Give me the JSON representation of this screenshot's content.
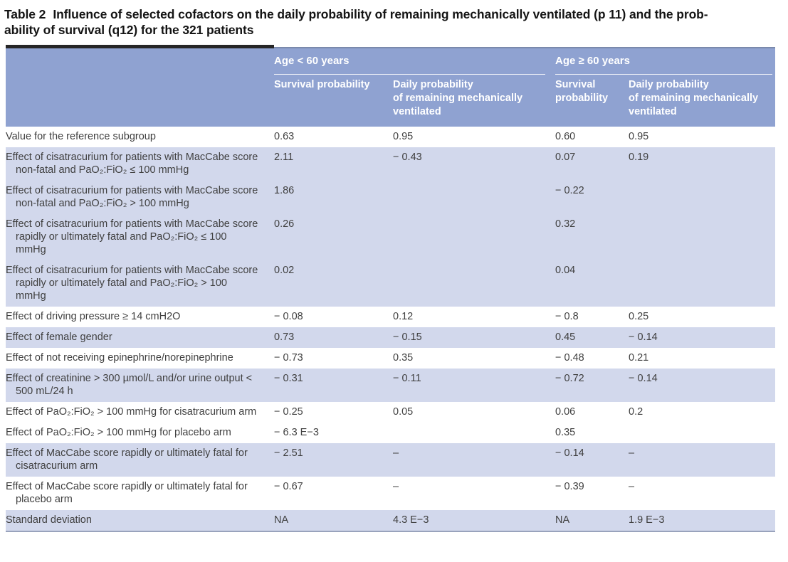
{
  "title": {
    "label": "Table 2",
    "line1": "Influence of selected cofactors on the daily probability of remaining mechanically ventilated (p 11) and the prob-",
    "line2": "ability of survival (q12) for the 321 patients"
  },
  "table": {
    "groups": [
      {
        "label": "Age < 60 years"
      },
      {
        "label": "Age ≥ 60 years"
      }
    ],
    "col_keys": [
      "survival-lt60",
      "daily-lt60",
      "survival-ge60",
      "daily-ge60"
    ],
    "columns": [
      {
        "label": "Survival probability"
      },
      {
        "label": "Daily probability\nof remaining mechanically\nventilated"
      },
      {
        "label": "Survival\nprobability"
      },
      {
        "label": "Daily probability\nof remaining mechanically\nventilated"
      }
    ],
    "rows": [
      {
        "label": "Value for the reference subgroup",
        "values": [
          "0.63",
          "0.95",
          "0.60",
          "0.95"
        ],
        "shaded": false
      },
      {
        "label": "Effect of cisatracurium for patients with MacCabe score non-fatal and PaO₂:FiO₂ ≤ 100 mmHg",
        "values": [
          "2.11",
          "− 0.43",
          "0.07",
          "0.19"
        ],
        "shaded": true
      },
      {
        "label": "Effect of cisatracurium for patients with MacCabe score non-fatal and PaO₂:FiO₂ > 100 mmHg",
        "values": [
          "1.86",
          "",
          "− 0.22",
          ""
        ],
        "shaded": true
      },
      {
        "label": "Effect of cisatracurium for patients with MacCabe score rapidly or ultimately fatal and PaO₂:FiO₂ ≤ 100 mmHg",
        "values": [
          "0.26",
          "",
          "0.32",
          ""
        ],
        "shaded": true
      },
      {
        "label": "Effect of cisatracurium for patients with MacCabe score rapidly or ultimately fatal and PaO₂:FiO₂ > 100 mmHg",
        "values": [
          "0.02",
          "",
          "0.04",
          ""
        ],
        "shaded": true
      },
      {
        "label": "Effect of driving pressure ≥ 14 cmH2O",
        "values": [
          "− 0.08",
          "0.12",
          "− 0.8",
          "0.25"
        ],
        "shaded": false
      },
      {
        "label": "Effect of female gender",
        "values": [
          "0.73",
          "− 0.15",
          "0.45",
          "− 0.14"
        ],
        "shaded": true
      },
      {
        "label": "Effect of not receiving epinephrine/norepineph­rine",
        "values": [
          "− 0.73",
          "0.35",
          "− 0.48",
          "0.21"
        ],
        "shaded": false
      },
      {
        "label": "Effect of creatinine > 300 µmol/L and/or urine output < 500 mL/24 h",
        "values": [
          "− 0.31",
          "− 0.11",
          "− 0.72",
          "− 0.14"
        ],
        "shaded": true
      },
      {
        "label": "Effect of PaO₂:FiO₂ > 100 mmHg for cisatracurium arm",
        "values": [
          "− 0.25",
          "0.05",
          "0.06",
          "0.2"
        ],
        "shaded": false
      },
      {
        "label": "Effect of PaO₂:FiO₂ > 100 mmHg for placebo arm",
        "values": [
          "− 6.3 E−3",
          "",
          "0.35",
          ""
        ],
        "shaded": false
      },
      {
        "label": "Effect of MacCabe score rapidly or ultimately fatal for cisatracurium arm",
        "values": [
          "− 2.51",
          "–",
          "− 0.14",
          "–"
        ],
        "shaded": true
      },
      {
        "label": "Effect of MacCabe score rapidly or ultimately fatal for placebo arm",
        "values": [
          "− 0.67",
          "–",
          "− 0.39",
          "–"
        ],
        "shaded": false
      },
      {
        "label": "Standard deviation",
        "values": [
          "NA",
          "4.3 E−3",
          "NA",
          "1.9 E−3"
        ],
        "shaded": true
      }
    ],
    "colors": {
      "header_bg": "#8FA2D1",
      "row_shade": "#D2D8EC",
      "top_rule_black": "#262626",
      "top_rule_thin": "#7A89AC",
      "bottom_rule": "#99A3BC",
      "header_text": "#FFFFFF",
      "body_text": "#404040"
    }
  }
}
